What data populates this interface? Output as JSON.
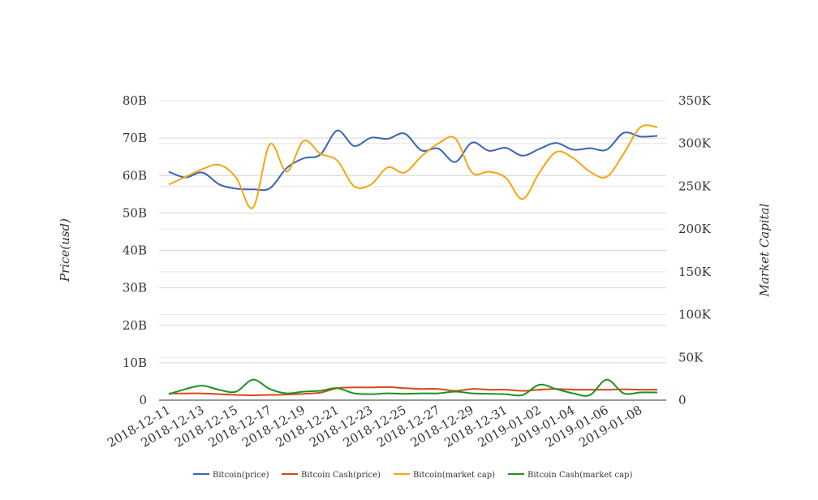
{
  "chart_data": {
    "type": "line",
    "title": "",
    "ylabel": "Price(usd)",
    "y2label": "Market Capital",
    "ylim": [
      0,
      80000000000
    ],
    "y2lim": [
      0,
      350000
    ],
    "y_ticks": [
      "0",
      "10B",
      "20B",
      "30B",
      "40B",
      "50B",
      "60B",
      "70B",
      "80B"
    ],
    "y2_ticks": [
      "0",
      "50K",
      "100K",
      "150K",
      "200K",
      "250K",
      "300K",
      "350K"
    ],
    "x_tick_labels": [
      "2018-12-11",
      "2018-12-13",
      "2018-12-15",
      "2018-12-17",
      "2018-12-19",
      "2018-12-21",
      "2018-12-23",
      "2018-12-25",
      "2018-12-27",
      "2018-12-29",
      "2018-12-31",
      "2019-01-02",
      "2019-01-04",
      "2019-01-06",
      "2019-01-08"
    ],
    "x": [
      "2018-12-11",
      "2018-12-12",
      "2018-12-13",
      "2018-12-14",
      "2018-12-15",
      "2018-12-16",
      "2018-12-17",
      "2018-12-18",
      "2018-12-19",
      "2018-12-20",
      "2018-12-21",
      "2018-12-22",
      "2018-12-23",
      "2018-12-24",
      "2018-12-25",
      "2018-12-26",
      "2018-12-27",
      "2018-12-28",
      "2018-12-29",
      "2018-12-30",
      "2018-12-31",
      "2019-01-01",
      "2019-01-02",
      "2019-01-03",
      "2019-01-04",
      "2019-01-05",
      "2019-01-06",
      "2019-01-07",
      "2019-01-08",
      "2019-01-09"
    ],
    "legend_position": "bottom",
    "series": [
      {
        "name": "Bitcoin(price)",
        "color": "#3a62b5",
        "axis": "left",
        "values": [
          61000000000,
          59500000000,
          60800000000,
          57600000000,
          56500000000,
          56300000000,
          56600000000,
          62000000000,
          64600000000,
          65600000000,
          72000000000,
          67900000000,
          70100000000,
          69800000000,
          71200000000,
          66700000000,
          67200000000,
          63600000000,
          68800000000,
          66600000000,
          67400000000,
          65300000000,
          67100000000,
          68700000000,
          66900000000,
          67300000000,
          66900000000,
          71400000000,
          70400000000,
          70600000000
        ]
      },
      {
        "name": "Bitcoin Cash(price)",
        "color": "#d8481c",
        "axis": "left",
        "values": [
          1800000000,
          1800000000,
          1800000000,
          1600000000,
          1400000000,
          1300000000,
          1400000000,
          1500000000,
          1700000000,
          2000000000,
          3200000000,
          3400000000,
          3400000000,
          3500000000,
          3200000000,
          3000000000,
          3000000000,
          2500000000,
          3000000000,
          2800000000,
          2800000000,
          2500000000,
          2800000000,
          3000000000,
          2800000000,
          2800000000,
          2800000000,
          2900000000,
          2800000000,
          2800000000
        ]
      },
      {
        "name": "Bitcoin(market cap)",
        "color": "#f5a511",
        "axis": "right",
        "values": [
          252000,
          261000,
          270000,
          275000,
          260000,
          225000,
          299000,
          267000,
          303000,
          288000,
          280000,
          250000,
          252000,
          272000,
          266000,
          285000,
          300000,
          306000,
          266000,
          267000,
          260000,
          235000,
          266000,
          290000,
          283000,
          267000,
          261000,
          288000,
          319000,
          319000
        ]
      },
      {
        "name": "Bitcoin Cash(market cap)",
        "color": "#1c9420",
        "axis": "right",
        "values": [
          7000,
          13000,
          17000,
          12000,
          10000,
          24000,
          13000,
          8000,
          10000,
          11000,
          14000,
          8000,
          7000,
          8000,
          7500,
          8000,
          8000,
          10000,
          8000,
          7500,
          7000,
          6000,
          18000,
          13000,
          8000,
          6000,
          24000,
          8000,
          9000,
          9000
        ]
      }
    ]
  }
}
